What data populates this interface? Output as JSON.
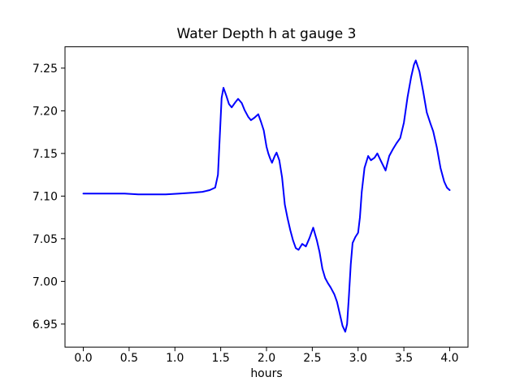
{
  "figure": {
    "background_color": "#ffffff",
    "frame_color": "#000000",
    "text_color": "#000000"
  },
  "chart_data": {
    "type": "line",
    "title": "Water Depth h at gauge 3",
    "xlabel": "hours",
    "ylabel": "",
    "xlim": [
      -0.2,
      4.2
    ],
    "ylim": [
      6.923,
      7.275
    ],
    "x_tick_values": [
      0.0,
      0.5,
      1.0,
      1.5,
      2.0,
      2.5,
      3.0,
      3.5,
      4.0
    ],
    "x_tick_labels": [
      "0.0",
      "0.5",
      "1.0",
      "1.5",
      "2.0",
      "2.5",
      "3.0",
      "3.5",
      "4.0"
    ],
    "y_tick_values": [
      6.95,
      7.0,
      7.05,
      7.1,
      7.15,
      7.2,
      7.25
    ],
    "y_tick_labels": [
      "6.95",
      "7.00",
      "7.05",
      "7.10",
      "7.15",
      "7.20",
      "7.25"
    ],
    "grid": false,
    "legend": false,
    "series": [
      {
        "name": "water-depth-h-gauge-3",
        "color": "#0000ff",
        "line_width": 2,
        "points": [
          [
            0.0,
            7.103
          ],
          [
            0.15,
            7.103
          ],
          [
            0.3,
            7.103
          ],
          [
            0.45,
            7.103
          ],
          [
            0.6,
            7.102
          ],
          [
            0.75,
            7.102
          ],
          [
            0.9,
            7.102
          ],
          [
            1.05,
            7.103
          ],
          [
            1.2,
            7.104
          ],
          [
            1.3,
            7.105
          ],
          [
            1.38,
            7.107
          ],
          [
            1.44,
            7.11
          ],
          [
            1.47,
            7.125
          ],
          [
            1.49,
            7.17
          ],
          [
            1.51,
            7.215
          ],
          [
            1.53,
            7.227
          ],
          [
            1.56,
            7.218
          ],
          [
            1.59,
            7.208
          ],
          [
            1.62,
            7.204
          ],
          [
            1.66,
            7.21
          ],
          [
            1.69,
            7.214
          ],
          [
            1.73,
            7.209
          ],
          [
            1.76,
            7.201
          ],
          [
            1.8,
            7.193
          ],
          [
            1.83,
            7.189
          ],
          [
            1.87,
            7.192
          ],
          [
            1.91,
            7.196
          ],
          [
            1.94,
            7.187
          ],
          [
            1.97,
            7.177
          ],
          [
            2.0,
            7.158
          ],
          [
            2.02,
            7.15
          ],
          [
            2.04,
            7.144
          ],
          [
            2.06,
            7.139
          ],
          [
            2.09,
            7.147
          ],
          [
            2.11,
            7.151
          ],
          [
            2.14,
            7.142
          ],
          [
            2.17,
            7.122
          ],
          [
            2.2,
            7.09
          ],
          [
            2.23,
            7.074
          ],
          [
            2.26,
            7.06
          ],
          [
            2.29,
            7.048
          ],
          [
            2.32,
            7.039
          ],
          [
            2.35,
            7.037
          ],
          [
            2.39,
            7.044
          ],
          [
            2.43,
            7.041
          ],
          [
            2.47,
            7.051
          ],
          [
            2.51,
            7.063
          ],
          [
            2.55,
            7.048
          ],
          [
            2.58,
            7.034
          ],
          [
            2.61,
            7.015
          ],
          [
            2.64,
            7.004
          ],
          [
            2.67,
            6.998
          ],
          [
            2.7,
            6.993
          ],
          [
            2.74,
            6.985
          ],
          [
            2.77,
            6.976
          ],
          [
            2.8,
            6.962
          ],
          [
            2.83,
            6.948
          ],
          [
            2.86,
            6.941
          ],
          [
            2.88,
            6.95
          ],
          [
            2.9,
            6.983
          ],
          [
            2.92,
            7.02
          ],
          [
            2.94,
            7.045
          ],
          [
            2.97,
            7.052
          ],
          [
            3.0,
            7.057
          ],
          [
            3.02,
            7.075
          ],
          [
            3.04,
            7.105
          ],
          [
            3.07,
            7.133
          ],
          [
            3.11,
            7.147
          ],
          [
            3.14,
            7.142
          ],
          [
            3.18,
            7.145
          ],
          [
            3.21,
            7.15
          ],
          [
            3.25,
            7.141
          ],
          [
            3.3,
            7.13
          ],
          [
            3.34,
            7.147
          ],
          [
            3.38,
            7.155
          ],
          [
            3.42,
            7.162
          ],
          [
            3.46,
            7.168
          ],
          [
            3.5,
            7.186
          ],
          [
            3.54,
            7.216
          ],
          [
            3.58,
            7.24
          ],
          [
            3.61,
            7.254
          ],
          [
            3.63,
            7.259
          ],
          [
            3.67,
            7.246
          ],
          [
            3.71,
            7.223
          ],
          [
            3.75,
            7.198
          ],
          [
            3.79,
            7.185
          ],
          [
            3.82,
            7.176
          ],
          [
            3.86,
            7.157
          ],
          [
            3.9,
            7.133
          ],
          [
            3.94,
            7.117
          ],
          [
            3.97,
            7.11
          ],
          [
            4.0,
            7.107
          ]
        ]
      }
    ]
  }
}
